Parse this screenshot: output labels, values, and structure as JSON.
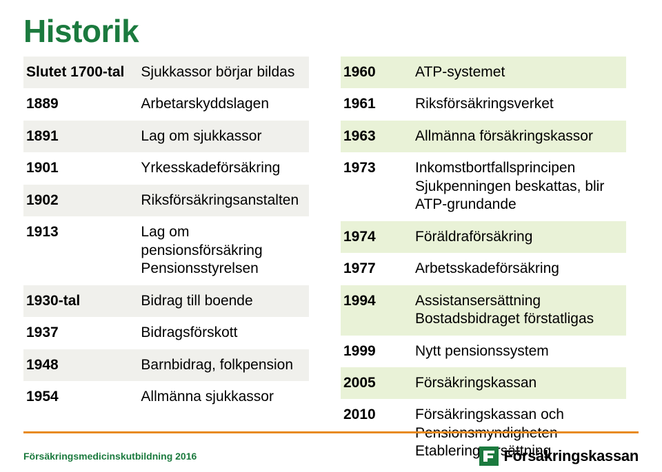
{
  "title": {
    "text": "Historik",
    "color": "#1b7a3e",
    "fontsize": 46
  },
  "colors": {
    "band_left": "#f0f0ec",
    "band_right": "#e9f2d7",
    "rule": "#e88a1e",
    "logo": "#1b7a3e",
    "text": "#000000"
  },
  "left_table": {
    "year_col_width": 112,
    "fontsize": 21,
    "rows": [
      {
        "year": "Slutet 1700-tal",
        "text": "Sjukkassor börjar bildas"
      },
      {
        "year": "1889",
        "text": "Arbetarskyddslagen"
      },
      {
        "year": "1891",
        "text": "Lag om sjukkassor"
      },
      {
        "year": "1901",
        "text": "Yrkesskadeförsäkring"
      },
      {
        "year": "1902",
        "text": "Riksförsäkringsanstalten"
      },
      {
        "year": "1913",
        "text": "Lag om pensionsförsäkring\nPensionsstyrelsen"
      },
      {
        "year": "1930-tal",
        "text": "Bidrag till boende"
      },
      {
        "year": "1937",
        "text": "Bidragsförskott"
      },
      {
        "year": "1948",
        "text": "Barnbidrag, folkpension"
      },
      {
        "year": "1954",
        "text": "Allmänna sjukkassor"
      }
    ]
  },
  "right_table": {
    "year_col_width": 80,
    "fontsize": 21,
    "rows": [
      {
        "year": "1960",
        "text": "ATP-systemet"
      },
      {
        "year": "1961",
        "text": "Riksförsäkringsverket"
      },
      {
        "year": "1963",
        "text": "Allmänna försäkringskassor"
      },
      {
        "year": "1973",
        "text": "Inkomstbortfallsprincipen\nSjukpenningen beskattas, blir ATP-grundande"
      },
      {
        "year": "1974",
        "text": "Föräldraförsäkring"
      },
      {
        "year": "1977",
        "text": "Arbetsskadeförsäkring"
      },
      {
        "year": "1994",
        "text": "Assistansersättning\nBostadsbidraget förstatligas"
      },
      {
        "year": "1999",
        "text": "Nytt pensionssystem"
      },
      {
        "year": "2005",
        "text": "Försäkringskassan"
      },
      {
        "year": "2010",
        "text": "Försäkringskassan och Pensionsmyndigheten\nEtableringsersättning"
      }
    ]
  },
  "footer": {
    "text": "Försäkringsmedicinskutbildning 2016",
    "text_color": "#1b7a3e",
    "logo_word": "Försäkringskassan"
  }
}
